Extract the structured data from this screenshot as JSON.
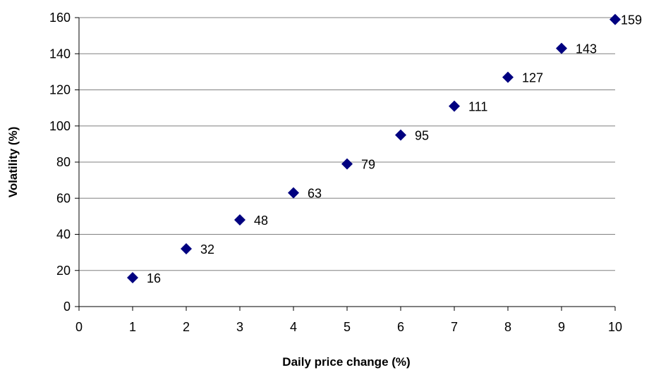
{
  "chart_data": {
    "type": "scatter",
    "title": "",
    "xlabel": "Daily price change (%)",
    "ylabel": "Volatility (%)",
    "xlim": [
      0,
      10
    ],
    "ylim": [
      0,
      160
    ],
    "xticks": [
      0,
      1,
      2,
      3,
      4,
      5,
      6,
      7,
      8,
      9,
      10
    ],
    "yticks": [
      0,
      20,
      40,
      60,
      80,
      100,
      120,
      140,
      160
    ],
    "grid": "horizontal",
    "legend": "none",
    "marker": "diamond",
    "series": [
      {
        "x": [
          1,
          2,
          3,
          4,
          5,
          6,
          7,
          8,
          9,
          10
        ],
        "y": [
          16,
          32,
          48,
          63,
          79,
          95,
          111,
          127,
          143,
          159
        ],
        "labels": [
          "16",
          "32",
          "48",
          "63",
          "79",
          "95",
          "111",
          "127",
          "143",
          "159"
        ],
        "color": "#000080"
      }
    ],
    "colors": {
      "marker": "#000080",
      "gridline": "#808080",
      "axis": "#000000"
    }
  }
}
